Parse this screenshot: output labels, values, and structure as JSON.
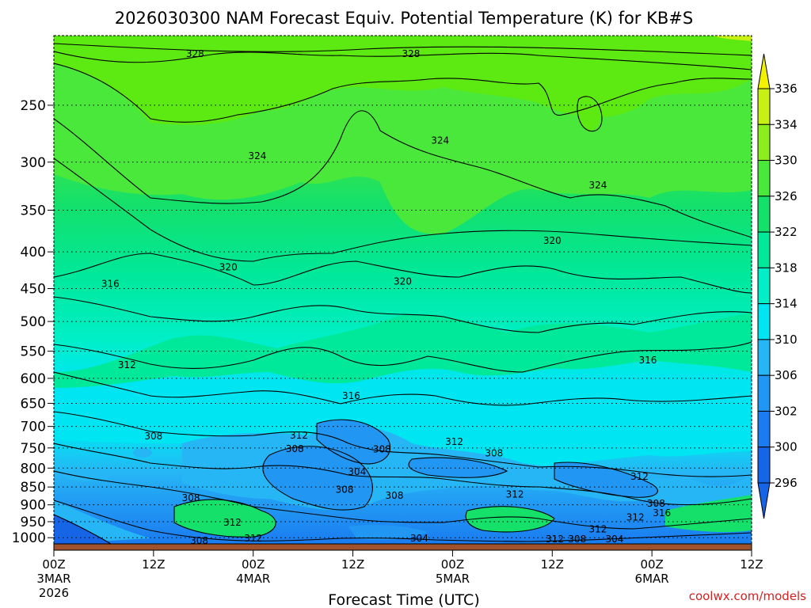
{
  "chart_data": {
    "type": "heatmap",
    "title": "2026030300 NAM Forecast Equiv. Potential Temperature (K) for KB#S",
    "xlabel": "Forecast Time (UTC)",
    "ylabel": "",
    "credit": "coolwx.com/models",
    "y_axis": {
      "scale": "log-pressure",
      "ticks": [
        250,
        300,
        350,
        400,
        450,
        500,
        550,
        600,
        650,
        700,
        750,
        800,
        850,
        900,
        950,
        1000
      ],
      "range": [
        200,
        1020
      ]
    },
    "x_axis": {
      "range_hours": [
        0,
        84
      ],
      "ticks": [
        {
          "hour": 0,
          "label": "00Z",
          "day": "3MAR",
          "year": "2026"
        },
        {
          "hour": 12,
          "label": "12Z",
          "day": "",
          "year": ""
        },
        {
          "hour": 24,
          "label": "00Z",
          "day": "4MAR",
          "year": ""
        },
        {
          "hour": 36,
          "label": "12Z",
          "day": "",
          "year": ""
        },
        {
          "hour": 48,
          "label": "00Z",
          "day": "5MAR",
          "year": ""
        },
        {
          "hour": 60,
          "label": "12Z",
          "day": "",
          "year": ""
        },
        {
          "hour": 72,
          "label": "00Z",
          "day": "6MAR",
          "year": ""
        },
        {
          "hour": 84,
          "label": "12Z",
          "day": "",
          "year": ""
        }
      ]
    },
    "colorbar": {
      "levels": [
        296,
        300,
        302,
        306,
        310,
        314,
        318,
        322,
        326,
        330,
        334,
        336
      ],
      "colors": [
        "#1565e6",
        "#1a7cf0",
        "#2196f3",
        "#26b6f5",
        "#00e5f2",
        "#00efc8",
        "#00e89a",
        "#14e06a",
        "#4ae83b",
        "#8cee1e",
        "#c8f014",
        "#f2f200"
      ]
    },
    "contour_labels": [
      {
        "hour": 17.0,
        "p": 212,
        "text": "328"
      },
      {
        "hour": 43.0,
        "p": 212,
        "text": "328"
      },
      {
        "hour": 24.5,
        "p": 294,
        "text": "324"
      },
      {
        "hour": 46.5,
        "p": 280,
        "text": "324"
      },
      {
        "hour": 65.5,
        "p": 323,
        "text": "324"
      },
      {
        "hour": 21.0,
        "p": 420,
        "text": "320"
      },
      {
        "hour": 42.0,
        "p": 440,
        "text": "320"
      },
      {
        "hour": 60.0,
        "p": 386,
        "text": "320"
      },
      {
        "hour": 6.8,
        "p": 443,
        "text": "316"
      },
      {
        "hour": 35.8,
        "p": 635,
        "text": "316"
      },
      {
        "hour": 71.5,
        "p": 566,
        "text": "316"
      },
      {
        "hour": 8.8,
        "p": 575,
        "text": "312"
      },
      {
        "hour": 29.5,
        "p": 720,
        "text": "312"
      },
      {
        "hour": 48.2,
        "p": 735,
        "text": "312"
      },
      {
        "hour": 55.5,
        "p": 870,
        "text": "312"
      },
      {
        "hour": 70.5,
        "p": 822,
        "text": "312"
      },
      {
        "hour": 21.5,
        "p": 952,
        "text": "312"
      },
      {
        "hour": 24.0,
        "p": 1002,
        "text": "312"
      },
      {
        "hour": 60.3,
        "p": 1005,
        "text": "312"
      },
      {
        "hour": 65.5,
        "p": 973,
        "text": "312"
      },
      {
        "hour": 70.0,
        "p": 937,
        "text": "312"
      },
      {
        "hour": 12.0,
        "p": 722,
        "text": "308"
      },
      {
        "hour": 29.0,
        "p": 752,
        "text": "308"
      },
      {
        "hour": 39.5,
        "p": 753,
        "text": "308"
      },
      {
        "hour": 53.0,
        "p": 763,
        "text": "308"
      },
      {
        "hour": 16.5,
        "p": 880,
        "text": "308"
      },
      {
        "hour": 41.0,
        "p": 874,
        "text": "308"
      },
      {
        "hour": 72.5,
        "p": 896,
        "text": "308"
      },
      {
        "hour": 17.5,
        "p": 1010,
        "text": "308"
      },
      {
        "hour": 63.0,
        "p": 1005,
        "text": "308"
      },
      {
        "hour": 35.0,
        "p": 857,
        "text": "308"
      },
      {
        "hour": 36.5,
        "p": 810,
        "text": "304"
      },
      {
        "hour": 44.0,
        "p": 1002,
        "text": "304"
      },
      {
        "hour": 67.5,
        "p": 1005,
        "text": "304"
      },
      {
        "hour": 73.2,
        "p": 924,
        "text": "316"
      }
    ]
  }
}
